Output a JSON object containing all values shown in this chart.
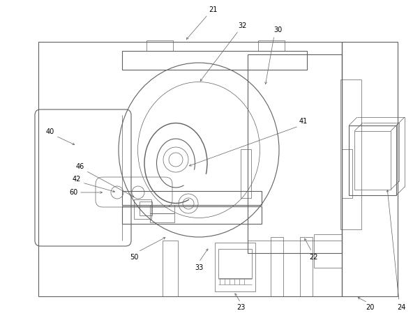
{
  "bg_color": "#ffffff",
  "lc": "#606060",
  "lw": 0.8,
  "tlw": 0.5,
  "fig_width": 5.92,
  "fig_height": 4.69,
  "dpi": 100
}
